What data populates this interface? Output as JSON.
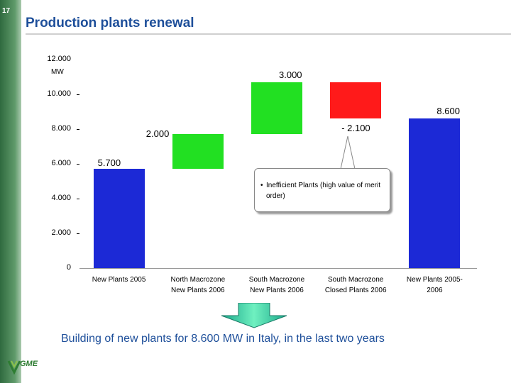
{
  "slide": {
    "page_number": "17",
    "title": "Production plants renewal",
    "summary": "Building of new plants for 8.600 MW in Italy, in the last two years",
    "callout_text": "Inefficient Plants (high value of merit order)",
    "logo_text": "GME"
  },
  "chart_data": {
    "type": "waterfall",
    "unit_label": "MW",
    "ylim": [
      0,
      12000
    ],
    "y_ticks": [
      {
        "value": 0,
        "label": "0"
      },
      {
        "value": 2000,
        "label": "2.000"
      },
      {
        "value": 4000,
        "label": "4.000"
      },
      {
        "value": 6000,
        "label": "6.000"
      },
      {
        "value": 8000,
        "label": "8.000"
      },
      {
        "value": 10000,
        "label": "10.000"
      },
      {
        "value": 12000,
        "label": "12.000"
      }
    ],
    "categories": [
      "New Plants 2005",
      "North Macrozone\nNew Plants 2006",
      "South Macrozone\nNew Plants 2006",
      "South Macrozone\nClosed Plants 2006",
      "New Plants 2005-\n2006"
    ],
    "bars": [
      {
        "start": 0,
        "end": 5700,
        "value_label": "5.700",
        "color": "#1c29d6"
      },
      {
        "start": 5700,
        "end": 7700,
        "value_label": "2.000",
        "color": "#22e022"
      },
      {
        "start": 7700,
        "end": 10700,
        "value_label": "3.000",
        "color": "#22e022"
      },
      {
        "start": 10700,
        "end": 8600,
        "value_label": "- 2.100",
        "color": "#ff1a1a"
      },
      {
        "start": 0,
        "end": 8600,
        "value_label": "8.600",
        "color": "#1c29d6"
      }
    ]
  }
}
